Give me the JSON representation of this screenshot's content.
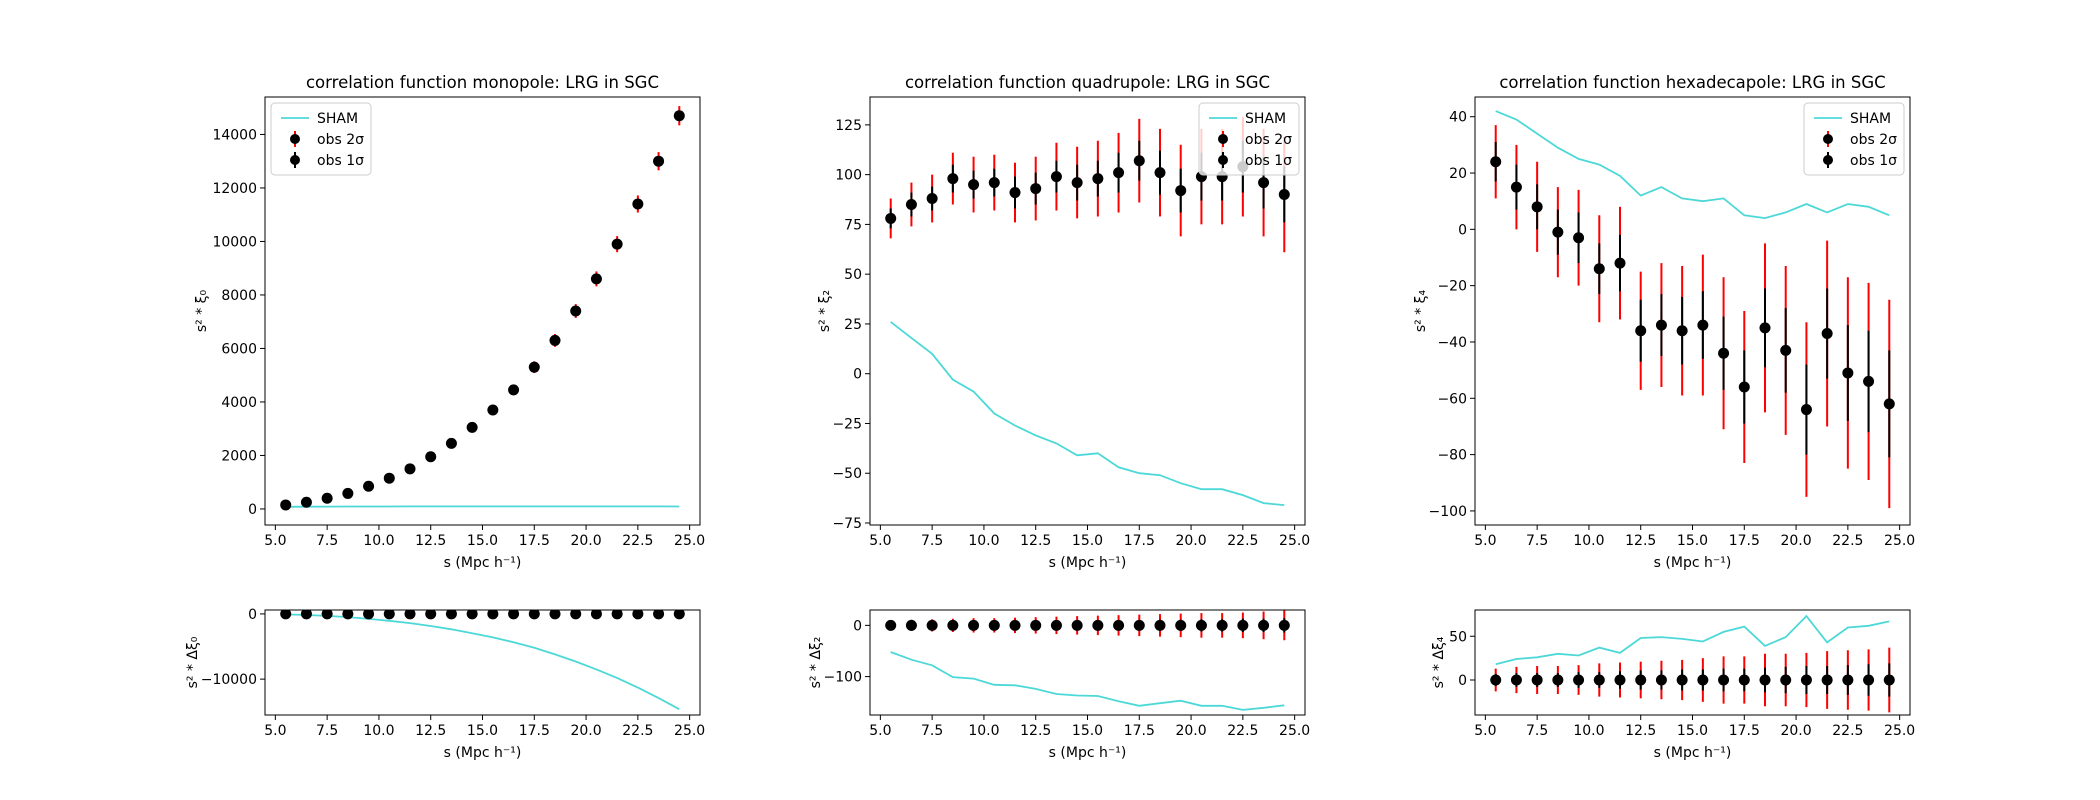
{
  "chart_data": [
    {
      "id": "mono-main",
      "type": "line+errorbar",
      "title": "correlation function monopole: LRG in SGC",
      "xlabel": "s (Mpc h⁻¹)",
      "ylabel": "s² * ξ₀",
      "xlim": [
        4.5,
        25.5
      ],
      "ylim": [
        -600,
        15400
      ],
      "xticks": [
        5.0,
        7.5,
        10.0,
        12.5,
        15.0,
        17.5,
        20.0,
        22.5,
        25.0
      ],
      "xtick_labels": [
        "5.0",
        "7.5",
        "10.0",
        "12.5",
        "15.0",
        "17.5",
        "20.0",
        "22.5",
        "25.0"
      ],
      "yticks": [
        0,
        2000,
        4000,
        6000,
        8000,
        10000,
        12000,
        14000
      ],
      "ytick_labels": [
        "0",
        "2000",
        "4000",
        "6000",
        "8000",
        "10000",
        "12000",
        "14000"
      ],
      "legend": {
        "placement": "upper-left",
        "entries": [
          "SHAM",
          "obs 2σ",
          "obs 1σ"
        ]
      },
      "x": [
        5.5,
        6.5,
        7.5,
        8.5,
        9.5,
        10.5,
        11.5,
        12.5,
        13.5,
        14.5,
        15.5,
        16.5,
        17.5,
        18.5,
        19.5,
        20.5,
        21.5,
        22.5,
        23.5,
        24.5
      ],
      "series": [
        {
          "name": "SHAM",
          "kind": "line",
          "values": [
            80,
            85,
            88,
            90,
            92,
            93,
            94,
            95,
            95,
            96,
            96,
            97,
            97,
            97,
            97,
            96,
            96,
            95,
            94,
            93
          ]
        },
        {
          "name": "obs",
          "kind": "points",
          "values": [
            150,
            250,
            400,
            580,
            850,
            1150,
            1500,
            1950,
            2450,
            3050,
            3700,
            4450,
            5300,
            6300,
            7400,
            8600,
            9900,
            11400,
            13000,
            14700
          ],
          "err1": [
            15,
            18,
            22,
            28,
            35,
            42,
            50,
            60,
            70,
            80,
            90,
            100,
            110,
            120,
            130,
            140,
            150,
            160,
            170,
            180
          ],
          "err2": [
            30,
            36,
            44,
            56,
            70,
            84,
            100,
            120,
            140,
            160,
            180,
            200,
            220,
            240,
            260,
            280,
            300,
            320,
            340,
            360
          ]
        }
      ]
    },
    {
      "id": "quad-main",
      "type": "line+errorbar",
      "title": "correlation function quadrupole: LRG in SGC",
      "xlabel": "s (Mpc h⁻¹)",
      "ylabel": "s² * ξ₂",
      "xlim": [
        4.5,
        25.5
      ],
      "ylim": [
        -76,
        139
      ],
      "xticks": [
        5.0,
        7.5,
        10.0,
        12.5,
        15.0,
        17.5,
        20.0,
        22.5,
        25.0
      ],
      "xtick_labels": [
        "5.0",
        "7.5",
        "10.0",
        "12.5",
        "15.0",
        "17.5",
        "20.0",
        "22.5",
        "25.0"
      ],
      "yticks": [
        -75,
        -50,
        -25,
        0,
        25,
        50,
        75,
        100,
        125
      ],
      "ytick_labels": [
        "−75",
        "−50",
        "−25",
        "0",
        "25",
        "50",
        "75",
        "100",
        "125"
      ],
      "legend": {
        "placement": "upper-right",
        "entries": [
          "SHAM",
          "obs 2σ",
          "obs 1σ"
        ]
      },
      "x": [
        5.5,
        6.5,
        7.5,
        8.5,
        9.5,
        10.5,
        11.5,
        12.5,
        13.5,
        14.5,
        15.5,
        16.5,
        17.5,
        18.5,
        19.5,
        20.5,
        21.5,
        22.5,
        23.5,
        24.5
      ],
      "series": [
        {
          "name": "SHAM",
          "kind": "line",
          "values": [
            26,
            18,
            10,
            -3,
            -9,
            -20,
            -26,
            -31,
            -35,
            -41,
            -40,
            -47,
            -50,
            -51,
            -55,
            -58,
            -58,
            -61,
            -65,
            -66
          ]
        },
        {
          "name": "obs",
          "kind": "points",
          "values": [
            78,
            85,
            88,
            98,
            95,
            96,
            91,
            93,
            99,
            96,
            98,
            101,
            107,
            101,
            92,
            99,
            99,
            104,
            96,
            90
          ],
          "err1": [
            5,
            6,
            6,
            7,
            7,
            7,
            8,
            8,
            8,
            9,
            9,
            10,
            10,
            11,
            11,
            12,
            12,
            13,
            13,
            14
          ],
          "err2": [
            10,
            11,
            12,
            13,
            14,
            14,
            15,
            16,
            17,
            18,
            19,
            20,
            21,
            22,
            23,
            24,
            24,
            25,
            27,
            29
          ]
        }
      ]
    },
    {
      "id": "hexa-main",
      "type": "line+errorbar",
      "title": "correlation function hexadecapole: LRG in SGC",
      "xlabel": "s (Mpc h⁻¹)",
      "ylabel": "s² * ξ₄",
      "xlim": [
        4.5,
        25.5
      ],
      "ylim": [
        -105,
        47
      ],
      "xticks": [
        5.0,
        7.5,
        10.0,
        12.5,
        15.0,
        17.5,
        20.0,
        22.5,
        25.0
      ],
      "xtick_labels": [
        "5.0",
        "7.5",
        "10.0",
        "12.5",
        "15.0",
        "17.5",
        "20.0",
        "22.5",
        "25.0"
      ],
      "yticks": [
        -100,
        -80,
        -60,
        -40,
        -20,
        0,
        20,
        40
      ],
      "ytick_labels": [
        "−100",
        "−80",
        "−60",
        "−40",
        "−20",
        "0",
        "20",
        "40"
      ],
      "legend": {
        "placement": "upper-right",
        "entries": [
          "SHAM",
          "obs 2σ",
          "obs 1σ"
        ]
      },
      "x": [
        5.5,
        6.5,
        7.5,
        8.5,
        9.5,
        10.5,
        11.5,
        12.5,
        13.5,
        14.5,
        15.5,
        16.5,
        17.5,
        18.5,
        19.5,
        20.5,
        21.5,
        22.5,
        23.5,
        24.5
      ],
      "series": [
        {
          "name": "SHAM",
          "kind": "line",
          "values": [
            42,
            39,
            34,
            29,
            25,
            23,
            19,
            12,
            15,
            11,
            10,
            11,
            5,
            4,
            6,
            9,
            6,
            9,
            8,
            5
          ]
        },
        {
          "name": "obs",
          "kind": "points",
          "values": [
            24,
            15,
            8,
            -1,
            -3,
            -14,
            -12,
            -36,
            -34,
            -36,
            -34,
            -44,
            -56,
            -35,
            -43,
            -64,
            -37,
            -51,
            -54,
            -62
          ],
          "err1": [
            7,
            8,
            8,
            8,
            9,
            9,
            10,
            11,
            11,
            12,
            12,
            13,
            13,
            14,
            15,
            16,
            16,
            17,
            18,
            19
          ],
          "err2": [
            13,
            15,
            16,
            16,
            17,
            19,
            20,
            21,
            22,
            23,
            25,
            27,
            27,
            30,
            30,
            31,
            33,
            34,
            35,
            37
          ]
        }
      ]
    },
    {
      "id": "mono-resid",
      "type": "line+errorbar",
      "title": "",
      "xlabel": "s (Mpc h⁻¹)",
      "ylabel": "s² * Δξ₀",
      "xlim": [
        4.5,
        25.5
      ],
      "ylim": [
        -15500,
        600
      ],
      "xticks": [
        5.0,
        7.5,
        10.0,
        12.5,
        15.0,
        17.5,
        20.0,
        22.5,
        25.0
      ],
      "xtick_labels": [
        "5.0",
        "7.5",
        "10.0",
        "12.5",
        "15.0",
        "17.5",
        "20.0",
        "22.5",
        "25.0"
      ],
      "yticks": [
        -10000,
        0
      ],
      "ytick_labels": [
        "−10000",
        "0"
      ],
      "x": [
        5.5,
        6.5,
        7.5,
        8.5,
        9.5,
        10.5,
        11.5,
        12.5,
        13.5,
        14.5,
        15.5,
        16.5,
        17.5,
        18.5,
        19.5,
        20.5,
        21.5,
        22.5,
        23.5,
        24.5
      ],
      "series": [
        {
          "name": "SHAM",
          "kind": "line",
          "values": [
            -70,
            -165,
            -312,
            -490,
            -758,
            -1057,
            -1406,
            -1855,
            -2355,
            -2954,
            -3604,
            -4353,
            -5203,
            -6203,
            -7303,
            -8504,
            -9804,
            -11305,
            -12906,
            -14607
          ]
        },
        {
          "name": "obs",
          "kind": "points",
          "values": [
            0,
            0,
            0,
            0,
            0,
            0,
            0,
            0,
            0,
            0,
            0,
            0,
            0,
            0,
            0,
            0,
            0,
            0,
            0,
            0
          ],
          "err1": [
            15,
            18,
            22,
            28,
            35,
            42,
            50,
            60,
            70,
            80,
            90,
            100,
            110,
            120,
            130,
            140,
            150,
            160,
            170,
            180
          ],
          "err2": [
            30,
            36,
            44,
            56,
            70,
            84,
            100,
            120,
            140,
            160,
            180,
            200,
            220,
            240,
            260,
            280,
            300,
            320,
            340,
            360
          ]
        }
      ]
    },
    {
      "id": "quad-resid",
      "type": "line+errorbar",
      "title": "",
      "xlabel": "s (Mpc h⁻¹)",
      "ylabel": "s² * Δξ₂",
      "xlim": [
        4.5,
        25.5
      ],
      "ylim": [
        -175,
        30
      ],
      "xticks": [
        5.0,
        7.5,
        10.0,
        12.5,
        15.0,
        17.5,
        20.0,
        22.5,
        25.0
      ],
      "xtick_labels": [
        "5.0",
        "7.5",
        "10.0",
        "12.5",
        "15.0",
        "17.5",
        "20.0",
        "22.5",
        "25.0"
      ],
      "yticks": [
        -100,
        0
      ],
      "ytick_labels": [
        "−100",
        "0"
      ],
      "x": [
        5.5,
        6.5,
        7.5,
        8.5,
        9.5,
        10.5,
        11.5,
        12.5,
        13.5,
        14.5,
        15.5,
        16.5,
        17.5,
        18.5,
        19.5,
        20.5,
        21.5,
        22.5,
        23.5,
        24.5
      ],
      "series": [
        {
          "name": "SHAM",
          "kind": "line",
          "values": [
            -52,
            -67,
            -78,
            -101,
            -104,
            -116,
            -117,
            -124,
            -134,
            -137,
            -138,
            -148,
            -157,
            -152,
            -147,
            -157,
            -157,
            -165,
            -161,
            -156
          ]
        },
        {
          "name": "obs",
          "kind": "points",
          "values": [
            0,
            0,
            0,
            0,
            0,
            0,
            0,
            0,
            0,
            0,
            0,
            0,
            0,
            0,
            0,
            0,
            0,
            0,
            0,
            0
          ],
          "err1": [
            5,
            6,
            6,
            7,
            7,
            7,
            8,
            8,
            8,
            9,
            9,
            10,
            10,
            11,
            11,
            12,
            12,
            13,
            13,
            14
          ],
          "err2": [
            10,
            11,
            12,
            13,
            14,
            14,
            15,
            16,
            17,
            18,
            19,
            20,
            21,
            22,
            23,
            24,
            24,
            25,
            27,
            29
          ]
        }
      ]
    },
    {
      "id": "hexa-resid",
      "type": "line+errorbar",
      "title": "",
      "xlabel": "s (Mpc h⁻¹)",
      "ylabel": "s² * Δξ₄",
      "xlim": [
        4.5,
        25.5
      ],
      "ylim": [
        -40,
        80
      ],
      "xticks": [
        5.0,
        7.5,
        10.0,
        12.5,
        15.0,
        17.5,
        20.0,
        22.5,
        25.0
      ],
      "xtick_labels": [
        "5.0",
        "7.5",
        "10.0",
        "12.5",
        "15.0",
        "17.5",
        "20.0",
        "22.5",
        "25.0"
      ],
      "yticks": [
        0,
        50
      ],
      "ytick_labels": [
        "0",
        "50"
      ],
      "x": [
        5.5,
        6.5,
        7.5,
        8.5,
        9.5,
        10.5,
        11.5,
        12.5,
        13.5,
        14.5,
        15.5,
        16.5,
        17.5,
        18.5,
        19.5,
        20.5,
        21.5,
        22.5,
        23.5,
        24.5
      ],
      "series": [
        {
          "name": "SHAM",
          "kind": "line",
          "values": [
            18,
            24,
            26,
            30,
            28,
            37,
            31,
            48,
            49,
            47,
            44,
            55,
            61,
            39,
            49,
            73,
            43,
            60,
            62,
            67
          ]
        },
        {
          "name": "obs",
          "kind": "points",
          "values": [
            0,
            0,
            0,
            0,
            0,
            0,
            0,
            0,
            0,
            0,
            0,
            0,
            0,
            0,
            0,
            0,
            0,
            0,
            0,
            0
          ],
          "err1": [
            7,
            8,
            8,
            8,
            9,
            9,
            10,
            11,
            11,
            12,
            12,
            13,
            13,
            14,
            15,
            16,
            16,
            17,
            18,
            19
          ],
          "err2": [
            13,
            15,
            16,
            16,
            17,
            19,
            20,
            21,
            22,
            23,
            25,
            27,
            27,
            30,
            30,
            31,
            33,
            34,
            35,
            37
          ]
        }
      ]
    }
  ],
  "colors": {
    "model_line": "#4dd8d8",
    "err2": "#ff0000",
    "err1": "#000000",
    "points": "#000000"
  }
}
